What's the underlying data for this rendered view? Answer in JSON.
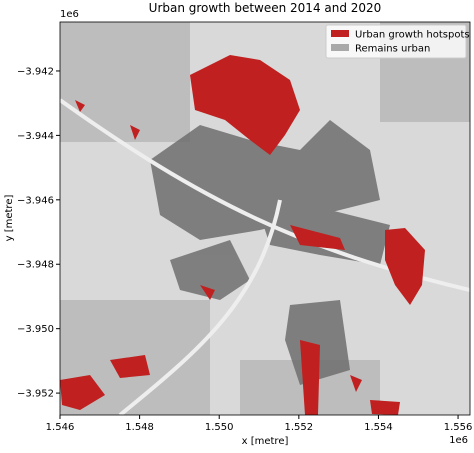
{
  "chart_data": {
    "type": "image",
    "title": "Urban growth between 2014 and 2020",
    "xlabel": "x [metre]",
    "ylabel": "y [metre]",
    "x_offset": "1e6",
    "y_offset": "1e6",
    "xlim": [
      1546000,
      1556300
    ],
    "ylim": [
      -3952680,
      -3940480
    ],
    "xticks": [
      {
        "value": 1546000,
        "label": "1.546"
      },
      {
        "value": 1548000,
        "label": "1.548"
      },
      {
        "value": 1550000,
        "label": "1.550"
      },
      {
        "value": 1552000,
        "label": "1.552"
      },
      {
        "value": 1554000,
        "label": "1.554"
      },
      {
        "value": 1556000,
        "label": "1.556"
      }
    ],
    "yticks": [
      {
        "value": -3942000,
        "label": "−3.942"
      },
      {
        "value": -3944000,
        "label": "−3.944"
      },
      {
        "value": -3946000,
        "label": "−3.946"
      },
      {
        "value": -3948000,
        "label": "−3.948"
      },
      {
        "value": -3950000,
        "label": "−3.950"
      },
      {
        "value": -3952000,
        "label": "−3.952"
      }
    ],
    "legend": {
      "loc": "upper right",
      "entries": [
        {
          "name": "Urban growth hotspots",
          "color": "#c0201f"
        },
        {
          "name": "Remains urban",
          "color": "#a9a9a9"
        }
      ]
    }
  }
}
